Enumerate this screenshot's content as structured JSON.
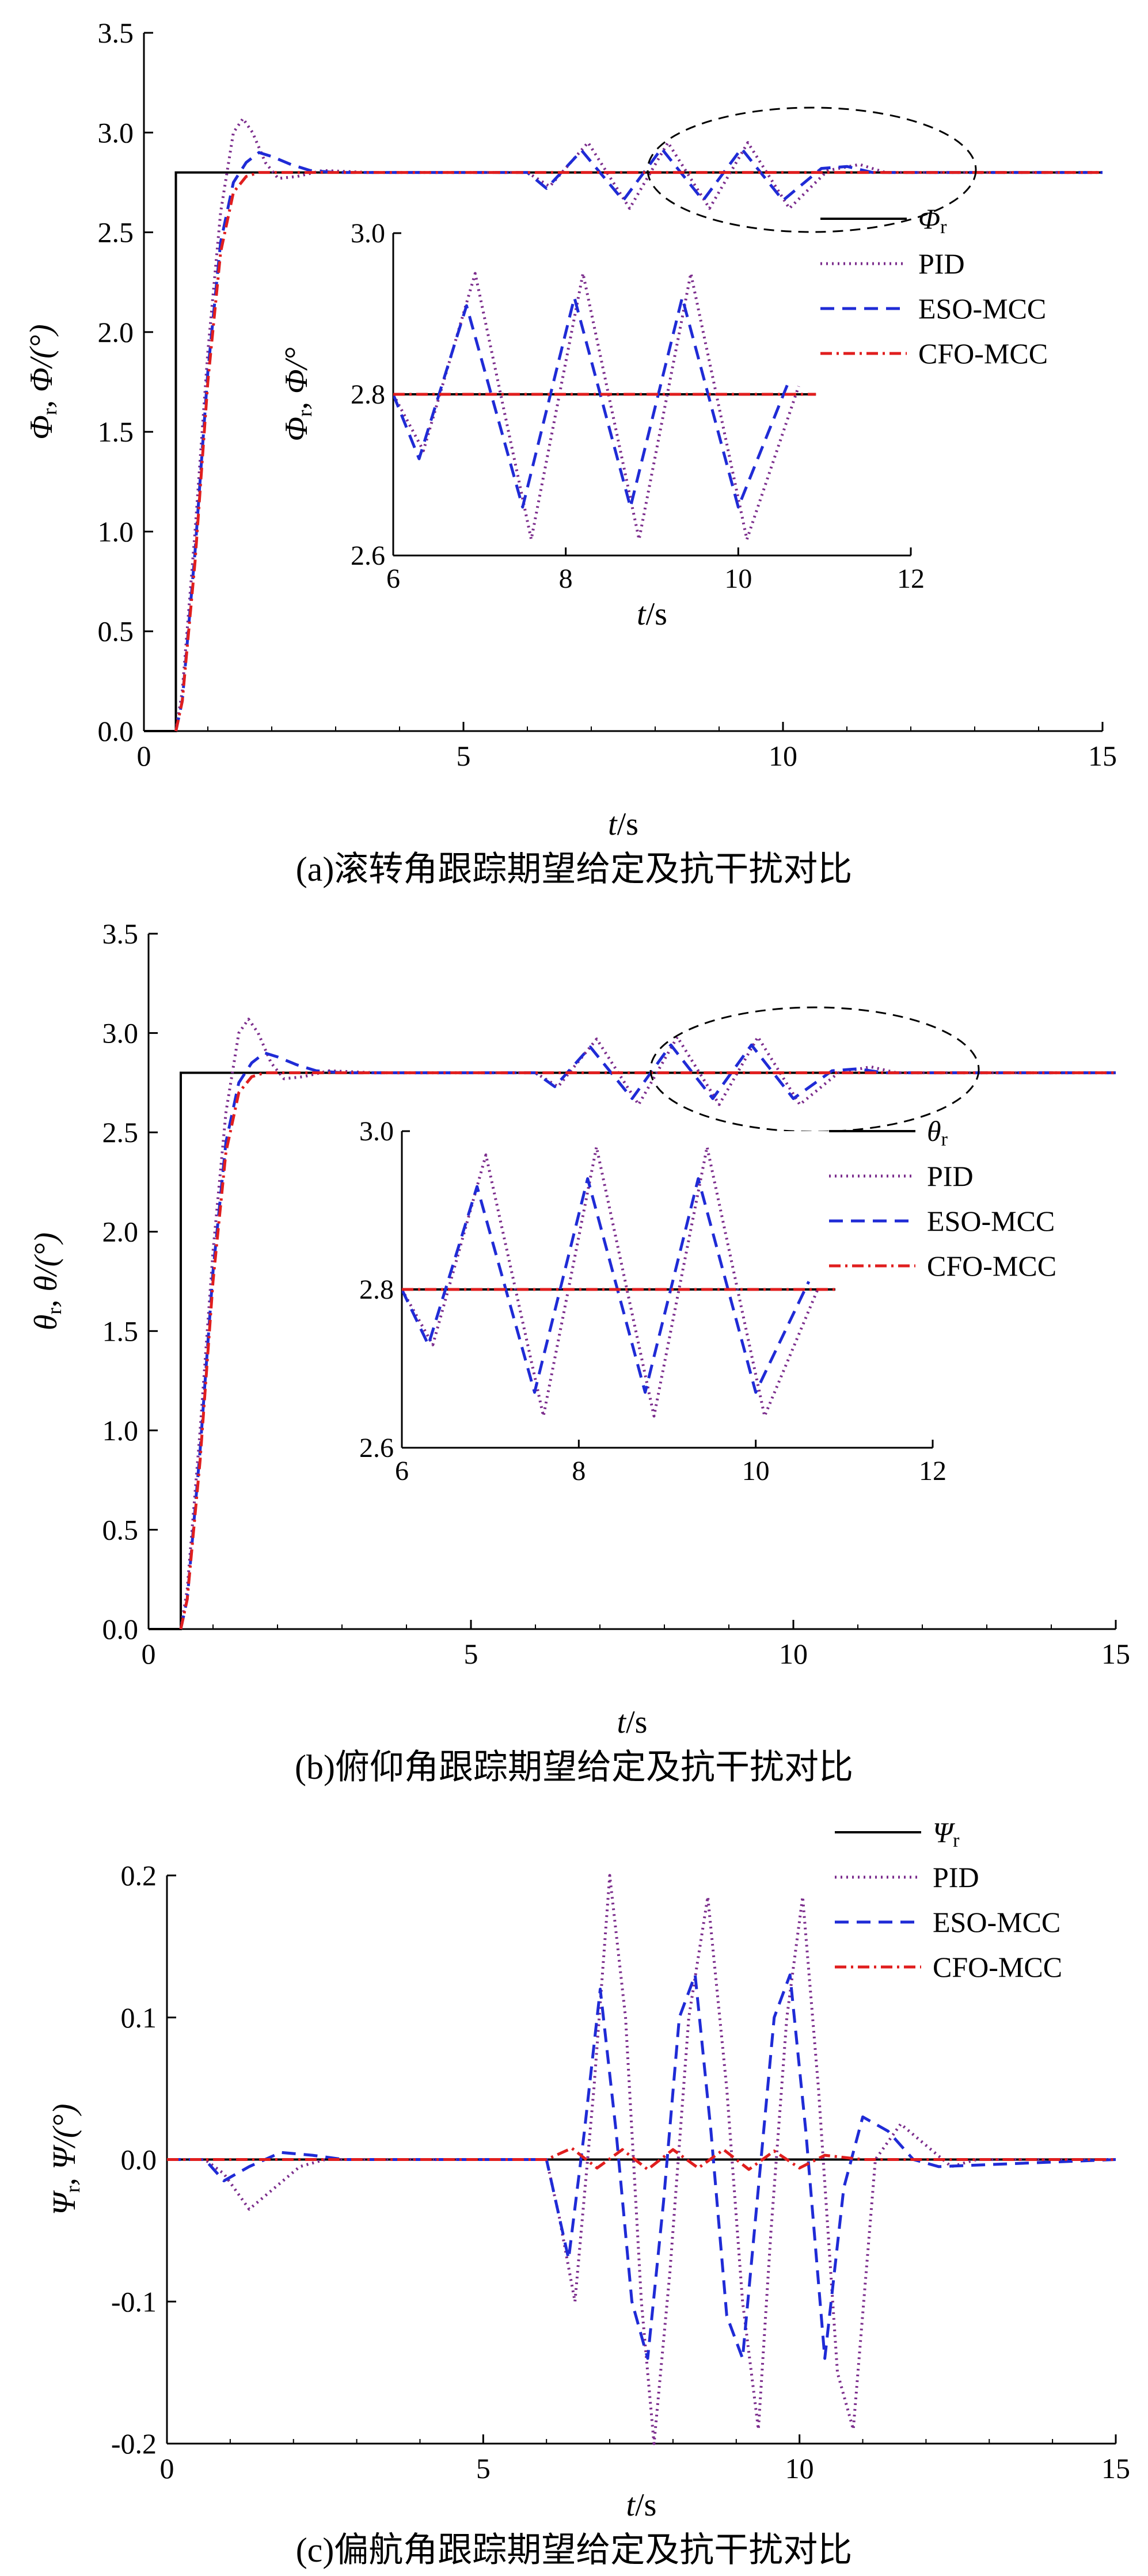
{
  "colors": {
    "ref": "#000000",
    "pid": "#7b2c8c",
    "eso": "#1f2bd6",
    "cfo": "#e01e1e"
  },
  "chart_data": [
    {
      "id": "a",
      "type": "line",
      "caption": "(a)滚转角跟踪期望给定及抗干扰对比",
      "xlabel_var": "t",
      "xlabel_unit": "/s",
      "ylabel_parts": [
        "Φ",
        "r",
        ", Φ/(°)"
      ],
      "xlim": [
        0,
        15
      ],
      "ylim": [
        0,
        3.5
      ],
      "xticks": [
        "0",
        "5",
        "10",
        "15"
      ],
      "yticks": [
        "0.0",
        "0.5",
        "1.0",
        "1.5",
        "2.0",
        "2.5",
        "3.0",
        "3.5"
      ],
      "legend": [
        {
          "key": "ref",
          "name": "Φ",
          "sub": "r"
        },
        {
          "key": "pid",
          "name": "PID",
          "sub": ""
        },
        {
          "key": "eso",
          "name": "ESO-MCC",
          "sub": ""
        },
        {
          "key": "cfo",
          "name": "CFO-MCC",
          "sub": ""
        }
      ],
      "reference": {
        "step_time": 0.5,
        "value": 2.8
      },
      "inset": {
        "xlim": [
          6,
          12
        ],
        "ylim": [
          2.6,
          3.0
        ],
        "xticks": [
          "6",
          "8",
          "10",
          "12"
        ],
        "yticks": [
          "2.6",
          "2.8",
          "3.0"
        ],
        "xlabel_var": "t",
        "xlabel_unit": "/s",
        "ylabel_parts": [
          "Φ",
          "r",
          ", Φ/°"
        ]
      },
      "series": [
        {
          "key": "pid",
          "name": "PID",
          "x": [
            0.5,
            0.6,
            0.8,
            1.0,
            1.2,
            1.4,
            1.55,
            1.7,
            1.9,
            2.1,
            2.4,
            2.8,
            3.5,
            6.0,
            6.35,
            6.95,
            7.6,
            8.2,
            8.85,
            9.45,
            10.1,
            10.7,
            11.2,
            11.6,
            12.0,
            15.0
          ],
          "y": [
            0.0,
            0.2,
            1.0,
            1.9,
            2.6,
            3.0,
            3.07,
            3.0,
            2.85,
            2.77,
            2.78,
            2.81,
            2.8,
            2.8,
            2.73,
            2.95,
            2.62,
            2.95,
            2.62,
            2.95,
            2.62,
            2.81,
            2.84,
            2.8,
            2.8,
            2.8
          ]
        },
        {
          "key": "eso",
          "name": "ESO-MCC",
          "x": [
            0.5,
            0.6,
            0.8,
            1.0,
            1.2,
            1.4,
            1.6,
            1.8,
            2.0,
            2.3,
            2.6,
            3.0,
            3.5,
            6.0,
            6.3,
            6.85,
            7.5,
            8.1,
            8.75,
            9.35,
            10.0,
            10.6,
            11.0,
            11.4,
            12.0,
            15.0
          ],
          "y": [
            0.0,
            0.15,
            0.9,
            1.8,
            2.45,
            2.75,
            2.85,
            2.9,
            2.88,
            2.84,
            2.81,
            2.8,
            2.8,
            2.8,
            2.72,
            2.91,
            2.66,
            2.92,
            2.66,
            2.92,
            2.66,
            2.82,
            2.83,
            2.8,
            2.8,
            2.8
          ]
        },
        {
          "key": "cfo",
          "name": "CFO-MCC",
          "x": [
            0.5,
            0.6,
            0.8,
            1.0,
            1.2,
            1.4,
            1.6,
            1.8,
            2.0,
            15.0
          ],
          "y": [
            0.0,
            0.15,
            0.85,
            1.75,
            2.4,
            2.7,
            2.78,
            2.8,
            2.8,
            2.8
          ]
        }
      ]
    },
    {
      "id": "b",
      "type": "line",
      "caption": "(b)俯仰角跟踪期望给定及抗干扰对比",
      "xlabel_var": "t",
      "xlabel_unit": "/s",
      "ylabel_parts": [
        "θ",
        "r",
        ", θ/(°)"
      ],
      "xlim": [
        0,
        15
      ],
      "ylim": [
        0,
        3.5
      ],
      "xticks": [
        "0",
        "5",
        "10",
        "15"
      ],
      "yticks": [
        "0.0",
        "0.5",
        "1.0",
        "1.5",
        "2.0",
        "2.5",
        "3.0",
        "3.5"
      ],
      "legend": [
        {
          "key": "ref",
          "name": "θ",
          "sub": "r"
        },
        {
          "key": "pid",
          "name": "PID",
          "sub": ""
        },
        {
          "key": "eso",
          "name": "ESO-MCC",
          "sub": ""
        },
        {
          "key": "cfo",
          "name": "CFO-MCC",
          "sub": ""
        }
      ],
      "reference": {
        "step_time": 0.5,
        "value": 2.8
      },
      "inset": {
        "xlim": [
          6,
          12
        ],
        "ylim": [
          2.6,
          3.0
        ],
        "xticks": [
          "6",
          "8",
          "10",
          "12"
        ],
        "yticks": [
          "2.6",
          "2.8",
          "3.0"
        ],
        "xlabel_var": "",
        "xlabel_unit": "",
        "ylabel_parts": [
          "",
          "",
          ""
        ]
      },
      "series": [
        {
          "key": "pid",
          "name": "PID",
          "x": [
            0.5,
            0.6,
            0.8,
            1.0,
            1.2,
            1.4,
            1.55,
            1.7,
            1.9,
            2.1,
            2.4,
            2.8,
            3.5,
            6.0,
            6.35,
            6.95,
            7.6,
            8.2,
            8.85,
            9.45,
            10.1,
            10.7,
            11.2,
            11.6,
            12.0,
            15.0
          ],
          "y": [
            0.0,
            0.2,
            1.0,
            1.9,
            2.6,
            3.0,
            3.07,
            3.0,
            2.85,
            2.77,
            2.78,
            2.81,
            2.8,
            2.8,
            2.73,
            2.97,
            2.64,
            2.98,
            2.64,
            2.98,
            2.64,
            2.8,
            2.83,
            2.8,
            2.8,
            2.8
          ]
        },
        {
          "key": "eso",
          "name": "ESO-MCC",
          "x": [
            0.5,
            0.6,
            0.8,
            1.0,
            1.2,
            1.4,
            1.6,
            1.8,
            2.0,
            2.3,
            2.6,
            3.0,
            3.5,
            6.0,
            6.3,
            6.85,
            7.5,
            8.1,
            8.75,
            9.35,
            10.0,
            10.6,
            11.0,
            11.4,
            12.0,
            15.0
          ],
          "y": [
            0.0,
            0.15,
            0.9,
            1.8,
            2.45,
            2.75,
            2.85,
            2.9,
            2.88,
            2.84,
            2.81,
            2.8,
            2.8,
            2.8,
            2.73,
            2.93,
            2.67,
            2.94,
            2.67,
            2.94,
            2.67,
            2.81,
            2.82,
            2.8,
            2.8,
            2.8
          ]
        },
        {
          "key": "cfo",
          "name": "CFO-MCC",
          "x": [
            0.5,
            0.6,
            0.8,
            1.0,
            1.2,
            1.4,
            1.6,
            1.8,
            2.0,
            15.0
          ],
          "y": [
            0.0,
            0.15,
            0.85,
            1.75,
            2.4,
            2.7,
            2.78,
            2.8,
            2.8,
            2.8
          ]
        }
      ]
    },
    {
      "id": "c",
      "type": "line",
      "caption": "(c)偏航角跟踪期望给定及抗干扰对比",
      "xlabel_var": "t",
      "xlabel_unit": "/s",
      "ylabel_parts": [
        "Ψ",
        "r",
        ", Ψ/(°)"
      ],
      "xlim": [
        0,
        15
      ],
      "ylim": [
        -0.2,
        0.2
      ],
      "xticks": [
        "0",
        "5",
        "10",
        "15"
      ],
      "yticks": [
        "-0.2",
        "-0.1",
        "0.0",
        "0.1",
        "0.2"
      ],
      "legend": [
        {
          "key": "ref",
          "name": "Ψ",
          "sub": "r"
        },
        {
          "key": "pid",
          "name": "PID",
          "sub": ""
        },
        {
          "key": "eso",
          "name": "ESO-MCC",
          "sub": ""
        },
        {
          "key": "cfo",
          "name": "CFO-MCC",
          "sub": ""
        }
      ],
      "reference": {
        "step_time": 0.0,
        "value": 0.0
      },
      "series": [
        {
          "key": "pid",
          "name": "PID",
          "x": [
            0,
            0.6,
            0.9,
            1.3,
            1.7,
            2.1,
            2.5,
            3.0,
            6.0,
            6.2,
            6.45,
            6.75,
            7.0,
            7.25,
            7.5,
            7.7,
            7.95,
            8.25,
            8.55,
            8.85,
            9.1,
            9.35,
            9.55,
            9.8,
            10.05,
            10.3,
            10.6,
            10.85,
            11.2,
            11.6,
            12.0,
            12.4,
            12.8,
            15.0
          ],
          "y": [
            0,
            0,
            -0.01,
            -0.035,
            -0.02,
            -0.005,
            0,
            0,
            0,
            -0.04,
            -0.1,
            0.05,
            0.2,
            0.1,
            -0.1,
            -0.2,
            -0.08,
            0.1,
            0.185,
            0.05,
            -0.1,
            -0.19,
            -0.05,
            0.1,
            0.185,
            0.05,
            -0.15,
            -0.19,
            0.0,
            0.025,
            0.01,
            -0.005,
            0,
            0
          ]
        },
        {
          "key": "eso",
          "name": "ESO-MCC",
          "x": [
            0,
            0.6,
            0.9,
            1.3,
            1.8,
            2.3,
            2.8,
            3.3,
            6.0,
            6.15,
            6.35,
            6.6,
            6.85,
            7.1,
            7.35,
            7.6,
            7.85,
            8.1,
            8.35,
            8.6,
            8.85,
            9.1,
            9.35,
            9.6,
            9.85,
            10.1,
            10.4,
            10.7,
            11.0,
            11.4,
            11.8,
            12.2,
            15.0
          ],
          "y": [
            0,
            0,
            -0.015,
            -0.005,
            0.005,
            0.003,
            0,
            0,
            0,
            -0.03,
            -0.07,
            0.02,
            0.12,
            0.02,
            -0.1,
            -0.14,
            -0.03,
            0.1,
            0.13,
            0.02,
            -0.11,
            -0.14,
            -0.02,
            0.1,
            0.13,
            0.02,
            -0.14,
            -0.02,
            0.03,
            0.02,
            0.0,
            -0.005,
            0
          ]
        },
        {
          "key": "cfo",
          "name": "CFO-MCC",
          "x": [
            0,
            6.0,
            6.4,
            6.8,
            7.2,
            7.6,
            8.0,
            8.4,
            8.8,
            9.2,
            9.6,
            10.0,
            10.4,
            11.0,
            15.0
          ],
          "y": [
            0,
            0,
            0.008,
            -0.006,
            0.007,
            -0.007,
            0.007,
            -0.006,
            0.007,
            -0.007,
            0.006,
            -0.006,
            0.003,
            0,
            0
          ]
        }
      ]
    }
  ]
}
